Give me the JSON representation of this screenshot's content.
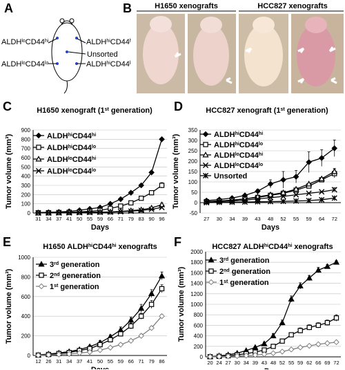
{
  "panel_letters": {
    "A": "A",
    "B": "B",
    "C": "C",
    "D": "D",
    "E": "E",
    "F": "F"
  },
  "panelA": {
    "labels": [
      {
        "pre": "ALDH",
        "s1": "lo",
        "mid": "CD44",
        "s2": "hi"
      },
      {
        "pre": "ALDH",
        "s1": "hi",
        "mid": "CD44",
        "s2": "hi"
      },
      {
        "pre": "Unsorted"
      },
      {
        "pre": "ALDH",
        "s1": "lo",
        "mid": "CD44",
        "s2": "lo"
      },
      {
        "pre": "ALDH",
        "s1": "hi",
        "mid": "CD44",
        "s2": "lo"
      }
    ]
  },
  "panelB": {
    "h1650": "H1650 xenografts",
    "hcc827": "HCC827 xenografts"
  },
  "colors": {
    "axis": "#000000",
    "grid": "#bfbfbf",
    "dark": "#000000",
    "gray": "#808080",
    "photo_bg": "#c9b9a2"
  },
  "chart_data": [
    {
      "id": "C",
      "type": "line",
      "title": {
        "pre": "H1650 xenograft (1",
        "sup": "st",
        "post": " generation)"
      },
      "xlabel": "Days",
      "ylabel": "Tumor volume (mm³)",
      "categories": [
        "31",
        "34",
        "37",
        "41",
        "50",
        "55",
        "59",
        "66",
        "71",
        "79",
        "83",
        "90",
        "96"
      ],
      "ylim": [
        0,
        900
      ],
      "yticks": [
        0,
        100,
        200,
        300,
        400,
        500,
        600,
        700,
        800,
        900
      ],
      "series": [
        {
          "name": {
            "pre": "ALDH",
            "s1": "hi",
            "mid": "CD44",
            "s2": "hi"
          },
          "marker": "diamond",
          "values": [
            5,
            8,
            12,
            18,
            30,
            45,
            60,
            100,
            150,
            220,
            300,
            440,
            800
          ],
          "err": [
            0,
            0,
            0,
            0,
            0,
            0,
            0,
            0,
            0,
            0,
            0,
            0,
            0
          ]
        },
        {
          "name": {
            "pre": "ALDH",
            "s1": "hi",
            "mid": "CD44",
            "s2": "lo"
          },
          "marker": "square",
          "values": [
            2,
            3,
            5,
            8,
            12,
            18,
            28,
            50,
            75,
            110,
            160,
            220,
            300
          ],
          "err": [
            0,
            0,
            0,
            0,
            0,
            0,
            0,
            0,
            0,
            0,
            0,
            0,
            30
          ]
        },
        {
          "name": {
            "pre": "ALDH",
            "s1": "lo",
            "mid": "CD44",
            "s2": "hi"
          },
          "marker": "triangle",
          "values": [
            1,
            2,
            3,
            4,
            6,
            8,
            10,
            12,
            18,
            25,
            35,
            55,
            90
          ],
          "err": [
            0,
            0,
            0,
            0,
            0,
            0,
            0,
            0,
            0,
            0,
            0,
            0,
            20
          ]
        },
        {
          "name": {
            "pre": "ALDH",
            "s1": "lo",
            "mid": "CD44",
            "s2": "lo"
          },
          "marker": "x",
          "values": [
            1,
            1,
            2,
            2,
            4,
            6,
            8,
            10,
            14,
            20,
            28,
            40,
            60
          ],
          "err": [
            0,
            0,
            0,
            0,
            0,
            0,
            0,
            0,
            0,
            0,
            0,
            0,
            0
          ]
        }
      ]
    },
    {
      "id": "D",
      "type": "line",
      "title": {
        "pre": "HCC827 xenograft (1",
        "sup": "st",
        "post": " generation)"
      },
      "xlabel": "Days",
      "ylabel": "Tumor volume (mm³)",
      "categories": [
        "27",
        "30",
        "34",
        "39",
        "43",
        "48",
        "52",
        "55",
        "59",
        "64",
        "72"
      ],
      "ylim": [
        -50,
        350
      ],
      "yticks": [
        -50,
        0,
        50,
        100,
        150,
        200,
        250,
        300,
        350
      ],
      "series": [
        {
          "name": {
            "pre": "ALDH",
            "s1": "hi",
            "mid": "CD44",
            "s2": "hi"
          },
          "marker": "diamond",
          "values": [
            10,
            15,
            22,
            35,
            55,
            90,
            110,
            125,
            195,
            215,
            262
          ],
          "err": [
            0,
            0,
            0,
            0,
            10,
            20,
            40,
            30,
            50,
            40,
            40
          ]
        },
        {
          "name": {
            "pre": "ALDH",
            "s1": "hi",
            "mid": "CD44",
            "s2": "lo"
          },
          "marker": "square",
          "values": [
            5,
            8,
            12,
            18,
            25,
            35,
            45,
            60,
            80,
            110,
            140
          ],
          "err": [
            0,
            0,
            0,
            0,
            0,
            0,
            0,
            0,
            0,
            0,
            20
          ]
        },
        {
          "name": {
            "pre": "ALDH",
            "s1": "lo",
            "mid": "CD44",
            "s2": "hi"
          },
          "marker": "triangle",
          "values": [
            5,
            8,
            12,
            18,
            28,
            38,
            48,
            65,
            90,
            115,
            150
          ],
          "err": [
            0,
            0,
            0,
            0,
            0,
            0,
            0,
            0,
            0,
            0,
            15
          ]
        },
        {
          "name": {
            "pre": "ALDH",
            "s1": "lo",
            "mid": "CD44",
            "s2": "lo"
          },
          "marker": "x",
          "values": [
            3,
            5,
            8,
            12,
            18,
            24,
            30,
            38,
            45,
            52,
            62
          ],
          "err": [
            0,
            0,
            0,
            0,
            0,
            0,
            0,
            0,
            0,
            0,
            10
          ]
        },
        {
          "name": {
            "pre": "Unsorted"
          },
          "marker": "star",
          "values": [
            0,
            1,
            2,
            3,
            4,
            5,
            6,
            8,
            10,
            14,
            22
          ],
          "err": [
            0,
            0,
            0,
            0,
            0,
            0,
            0,
            0,
            0,
            0,
            5
          ]
        }
      ]
    },
    {
      "id": "E",
      "type": "line",
      "title": {
        "pre": "H1650 ALDH",
        "s1": "hi",
        "mid": "CD44",
        "s2": "hi",
        "post": " xenografts"
      },
      "xlabel": "Days",
      "ylabel": "Tumor volume (mm³)",
      "categories": [
        "12",
        "26",
        "31",
        "34",
        "37",
        "41",
        "50",
        "55",
        "59",
        "66",
        "71",
        "79",
        "86"
      ],
      "ylim": [
        0,
        1000
      ],
      "yticks": [
        0,
        200,
        400,
        600,
        800,
        1000
      ],
      "series": [
        {
          "name": {
            "pre": "3",
            "sup": "rd",
            "post": " generation"
          },
          "marker": "triangle",
          "color": "#000000",
          "values": [
            5,
            15,
            25,
            40,
            60,
            90,
            130,
            190,
            260,
            360,
            480,
            630,
            810
          ],
          "err": [
            0,
            0,
            0,
            0,
            10,
            15,
            20,
            20,
            30,
            30,
            40,
            40,
            40
          ]
        },
        {
          "name": {
            "pre": "2",
            "sup": "nd",
            "post": " generation"
          },
          "marker": "square",
          "color": "#000000",
          "values": [
            4,
            10,
            20,
            30,
            50,
            70,
            110,
            160,
            220,
            300,
            400,
            520,
            680
          ],
          "err": [
            0,
            0,
            0,
            0,
            10,
            10,
            15,
            20,
            25,
            30,
            30,
            40,
            40
          ]
        },
        {
          "name": {
            "pre": "1",
            "sup": "st",
            "post": " generation"
          },
          "marker": "diamond",
          "color": "#808080",
          "values": [
            2,
            5,
            10,
            15,
            25,
            35,
            55,
            80,
            110,
            150,
            200,
            280,
            400
          ],
          "err": [
            0,
            0,
            0,
            0,
            0,
            0,
            10,
            10,
            15,
            15,
            20,
            20,
            20
          ]
        }
      ]
    },
    {
      "id": "F",
      "type": "line",
      "title": {
        "pre": "HCC827 ALDH",
        "s1": "hi",
        "mid": "CD44",
        "s2": "hi",
        "post": " xenografts"
      },
      "xlabel": "Days",
      "ylabel": "Tumor volume (mm³)",
      "categories": [
        "20",
        "24",
        "27",
        "30",
        "34",
        "39",
        "43",
        "48",
        "52",
        "55",
        "59",
        "62",
        "66",
        "69",
        "72"
      ],
      "ylim": [
        0,
        2000
      ],
      "yticks": [
        0,
        200,
        400,
        600,
        800,
        1000,
        1200,
        1400,
        1600,
        1800,
        2000
      ],
      "series": [
        {
          "name": {
            "pre": "3",
            "sup": "rd",
            "post": " generation"
          },
          "marker": "triangle",
          "color": "#000000",
          "values": [
            5,
            20,
            40,
            70,
            120,
            180,
            250,
            400,
            650,
            1100,
            1350,
            1500,
            1650,
            1720,
            1800
          ],
          "err": [
            0,
            0,
            0,
            0,
            0,
            20,
            30,
            40,
            50,
            60,
            60,
            50,
            50,
            40,
            30
          ]
        },
        {
          "name": {
            "pre": "2",
            "sup": "nd",
            "post": " generation"
          },
          "marker": "square",
          "color": "#000000",
          "values": [
            3,
            10,
            20,
            40,
            60,
            90,
            130,
            200,
            300,
            420,
            500,
            560,
            600,
            650,
            740
          ],
          "err": [
            0,
            0,
            0,
            0,
            0,
            10,
            20,
            30,
            40,
            40,
            50,
            50,
            50,
            50,
            60
          ]
        },
        {
          "name": {
            "pre": "1",
            "sup": "st",
            "post": " generation"
          },
          "marker": "diamond",
          "color": "#808080",
          "values": [
            2,
            5,
            10,
            15,
            25,
            35,
            50,
            70,
            100,
            140,
            180,
            210,
            240,
            260,
            280
          ],
          "err": [
            0,
            0,
            0,
            0,
            0,
            0,
            10,
            10,
            15,
            15,
            20,
            20,
            20,
            20,
            20
          ]
        }
      ]
    }
  ]
}
